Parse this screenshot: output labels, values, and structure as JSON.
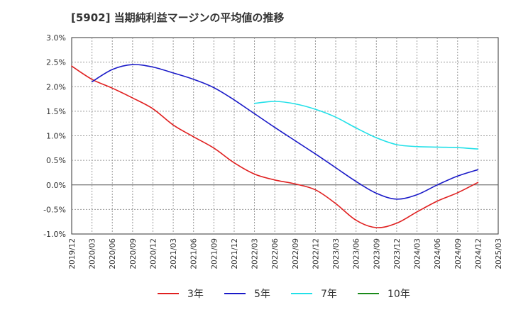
{
  "title": "[5902]  当期純利益マージンの平均値の推移",
  "chart_data": {
    "type": "line",
    "title": "[5902]  当期純利益マージンの平均値の推移",
    "xlabel": "",
    "ylabel": "",
    "ylim": [
      -1.0,
      3.0
    ],
    "y_ticks": [
      "3.0%",
      "2.5%",
      "2.0%",
      "1.5%",
      "1.0%",
      "0.5%",
      "0.0%",
      "-0.5%",
      "-1.0%"
    ],
    "x_ticks": [
      "2019/12",
      "2020/03",
      "2020/06",
      "2020/09",
      "2020/12",
      "2021/03",
      "2021/06",
      "2021/09",
      "2021/12",
      "2022/03",
      "2022/06",
      "2022/09",
      "2022/12",
      "2023/03",
      "2023/06",
      "2023/09",
      "2023/12",
      "2024/03",
      "2024/06",
      "2024/09",
      "2024/12",
      "2025/03"
    ],
    "grid": true,
    "legend_position": "bottom",
    "series": [
      {
        "name": "3年",
        "color": "#e02020",
        "values": [
          2.42,
          2.15,
          1.97,
          1.77,
          1.55,
          1.22,
          0.98,
          0.75,
          0.45,
          0.22,
          0.1,
          0.02,
          -0.1,
          -0.38,
          -0.72,
          -0.87,
          -0.78,
          -0.55,
          -0.33,
          -0.16,
          0.05,
          null
        ]
      },
      {
        "name": "5年",
        "color": "#1a1ac8",
        "values": [
          null,
          2.1,
          2.35,
          2.45,
          2.4,
          2.28,
          2.15,
          1.98,
          1.73,
          1.45,
          1.17,
          0.9,
          0.63,
          0.35,
          0.07,
          -0.17,
          -0.29,
          -0.2,
          0.0,
          0.18,
          0.31,
          null
        ]
      },
      {
        "name": "7年",
        "color": "#22e0e8",
        "values": [
          null,
          null,
          null,
          null,
          null,
          null,
          null,
          null,
          null,
          1.66,
          1.7,
          1.65,
          1.54,
          1.38,
          1.16,
          0.96,
          0.82,
          0.78,
          0.77,
          0.76,
          0.73,
          null
        ]
      },
      {
        "name": "10年",
        "color": "#1a8a1a",
        "values": [
          null,
          null,
          null,
          null,
          null,
          null,
          null,
          null,
          null,
          null,
          null,
          null,
          null,
          null,
          null,
          null,
          null,
          null,
          null,
          null,
          null,
          null
        ]
      }
    ]
  }
}
